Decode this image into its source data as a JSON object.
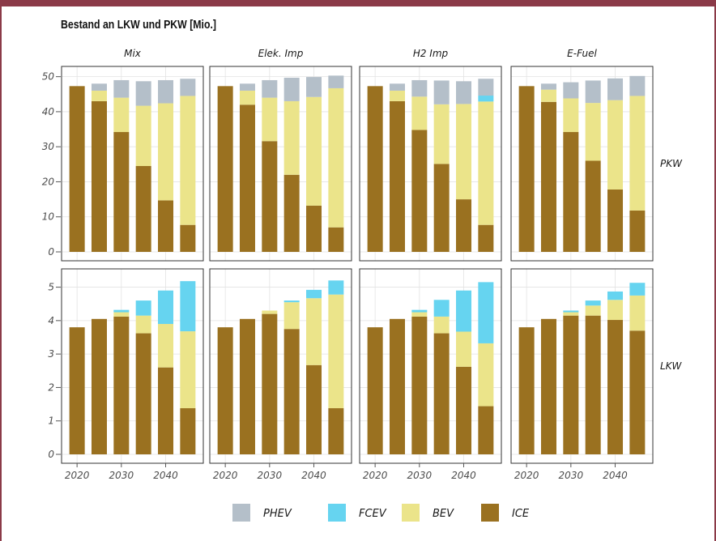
{
  "colors": {
    "PHEV": "#b4bfc9",
    "FCEV": "#66d4f0",
    "BEV": "#ebe48a",
    "ICE": "#9a7120",
    "frame": "#8b3a48",
    "grid": "#e3e3e3",
    "panel_border": "#333333"
  },
  "chart_data": {
    "type": "bar",
    "stacked": true,
    "title": "Bestand an LKW und PKW [Mio.]",
    "facet_columns": [
      "Mix",
      "Elek. Imp",
      "H2 Imp",
      "E-Fuel"
    ],
    "facet_rows": [
      "PKW",
      "LKW"
    ],
    "x": [
      2020,
      2025,
      2030,
      2035,
      2040,
      2045
    ],
    "x_ticks": [
      2020,
      2030,
      2040
    ],
    "stack_order": [
      "ICE",
      "BEV",
      "FCEV",
      "PHEV"
    ],
    "legend": [
      "PHEV",
      "FCEV",
      "BEV",
      "ICE"
    ],
    "legend_position": "bottom",
    "grid": true,
    "rows": {
      "PKW": {
        "ylim": [
          0,
          52
        ],
        "y_ticks": [
          0,
          10,
          20,
          30,
          40,
          50
        ],
        "panels": {
          "Mix": {
            "ICE": [
              47.3,
              43.0,
              34.2,
              24.5,
              14.7,
              7.7
            ],
            "BEV": [
              0,
              3.0,
              9.8,
              17.2,
              27.7,
              36.8
            ],
            "FCEV": [
              0,
              0,
              0,
              0,
              0,
              0
            ],
            "PHEV": [
              0,
              2.0,
              5.0,
              7.0,
              6.6,
              4.9
            ]
          },
          "Elek. Imp": {
            "ICE": [
              47.3,
              42.0,
              31.6,
              22.0,
              13.2,
              7.0
            ],
            "BEV": [
              0,
              4.0,
              12.4,
              21.0,
              31.0,
              39.7
            ],
            "FCEV": [
              0,
              0,
              0,
              0,
              0,
              0
            ],
            "PHEV": [
              0,
              2.0,
              5.0,
              6.7,
              5.7,
              3.6
            ]
          },
          "H2 Imp": {
            "ICE": [
              47.3,
              43.0,
              34.8,
              25.1,
              15.0,
              7.7
            ],
            "BEV": [
              0,
              3.0,
              9.5,
              17.0,
              27.2,
              35.2
            ],
            "FCEV": [
              0,
              0,
              0,
              0,
              0,
              1.7
            ],
            "PHEV": [
              0,
              2.0,
              4.7,
              6.8,
              6.5,
              4.8
            ]
          },
          "E-Fuel": {
            "ICE": [
              47.3,
              42.8,
              34.2,
              26.0,
              17.8,
              11.8
            ],
            "BEV": [
              0,
              3.5,
              9.6,
              16.5,
              25.5,
              32.7
            ],
            "FCEV": [
              0,
              0,
              0,
              0,
              0,
              0
            ],
            "PHEV": [
              0,
              1.7,
              4.6,
              6.4,
              6.2,
              5.7
            ]
          }
        }
      },
      "LKW": {
        "ylim": [
          0,
          5.45
        ],
        "y_ticks": [
          0,
          1,
          2,
          3,
          4,
          5
        ],
        "panels": {
          "Mix": {
            "ICE": [
              3.8,
              4.05,
              4.12,
              3.62,
              2.6,
              1.38
            ],
            "BEV": [
              0,
              0,
              0.13,
              0.53,
              1.3,
              2.3
            ],
            "FCEV": [
              0,
              0,
              0.07,
              0.45,
              1.0,
              1.5
            ],
            "PHEV": [
              0,
              0,
              0,
              0,
              0,
              0
            ]
          },
          "Elek. Imp": {
            "ICE": [
              3.8,
              4.05,
              4.2,
              3.75,
              2.67,
              1.38
            ],
            "BEV": [
              0,
              0,
              0.1,
              0.8,
              2.0,
              3.4
            ],
            "FCEV": [
              0,
              0,
              0,
              0.05,
              0.25,
              0.42
            ],
            "PHEV": [
              0,
              0,
              0,
              0,
              0,
              0
            ]
          },
          "H2 Imp": {
            "ICE": [
              3.8,
              4.05,
              4.12,
              3.62,
              2.62,
              1.44
            ],
            "BEV": [
              0,
              0,
              0.13,
              0.5,
              1.05,
              1.88
            ],
            "FCEV": [
              0,
              0,
              0.07,
              0.5,
              1.23,
              1.83
            ],
            "PHEV": [
              0,
              0,
              0,
              0,
              0,
              0
            ]
          },
          "E-Fuel": {
            "ICE": [
              3.8,
              4.05,
              4.15,
              4.15,
              4.02,
              3.7
            ],
            "BEV": [
              0,
              0,
              0.1,
              0.3,
              0.6,
              1.05
            ],
            "FCEV": [
              0,
              0,
              0.05,
              0.15,
              0.25,
              0.38
            ],
            "PHEV": [
              0,
              0,
              0,
              0,
              0,
              0
            ]
          }
        }
      }
    }
  }
}
